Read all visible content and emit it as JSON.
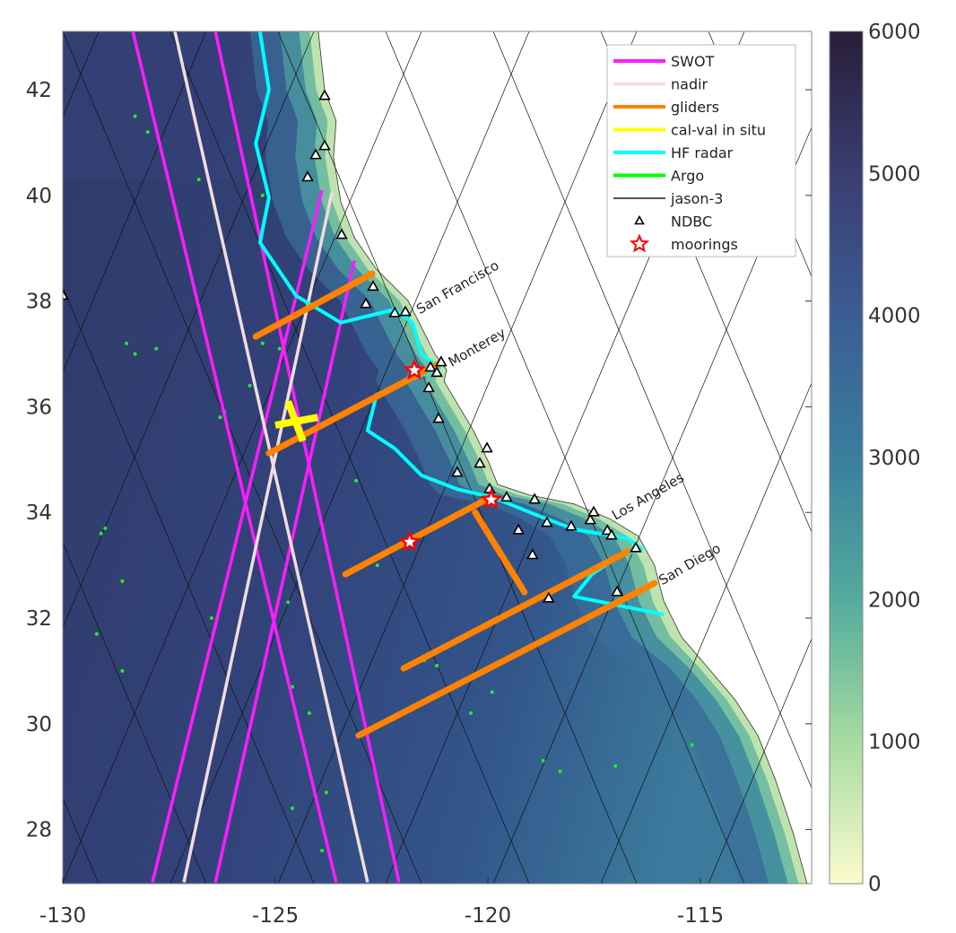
{
  "chart_data": {
    "type": "map",
    "xlim": [
      -130,
      -114.4
    ],
    "ylim": [
      27.0,
      43.1
    ],
    "x_ticks": [
      -130,
      -125,
      -120,
      -115
    ],
    "y_ticks": [
      28,
      30,
      32,
      34,
      36,
      38,
      40,
      42
    ],
    "x_tick_labels": [
      "-130",
      "-125",
      "-120",
      "-115"
    ],
    "y_tick_labels": [
      "28",
      "30",
      "32",
      "34",
      "36",
      "38",
      "40",
      "42"
    ],
    "colorbar": {
      "range": [
        0,
        6000
      ],
      "ticks": [
        "0",
        "1000",
        "2000",
        "3000",
        "4000",
        "5000",
        "6000"
      ],
      "colors": [
        "#fbfbcd",
        "#a6dba0",
        "#53ab9d",
        "#3a7e9e",
        "#3b5c93",
        "#3a3d72",
        "#281e38"
      ]
    },
    "legend": {
      "placement": "top-right",
      "entries": [
        {
          "label": "SWOT",
          "color": "#ff1cff",
          "kind": "line"
        },
        {
          "label": "nadir",
          "color": "#f8dede",
          "kind": "line"
        },
        {
          "label": "gliders",
          "color": "#ff8200",
          "kind": "line"
        },
        {
          "label": "cal-val in situ",
          "color": "#ffff00",
          "kind": "line"
        },
        {
          "label": "HF radar",
          "color": "#00ffff",
          "kind": "line"
        },
        {
          "label": "Argo",
          "color": "#00ff00",
          "kind": "line"
        },
        {
          "label": "jason-3",
          "color": "#555555",
          "kind": "thinline"
        },
        {
          "label": "NDBC",
          "color": "#000000",
          "kind": "triangle"
        },
        {
          "label": "moorings",
          "color": "#ff0000",
          "kind": "star"
        }
      ]
    },
    "cities": [
      {
        "label": "San Francisco",
        "lon": -121.6,
        "lat": 37.75
      },
      {
        "label": "Monterey",
        "lon": -120.85,
        "lat": 36.75
      },
      {
        "label": "Los Angeles",
        "lon": -117.0,
        "lat": 33.85
      },
      {
        "label": "San Diego",
        "lon": -115.9,
        "lat": 32.62
      }
    ],
    "coastline": [
      [
        -123.99,
        43.1
      ],
      [
        -123.84,
        42.0
      ],
      [
        -123.57,
        41.41
      ],
      [
        -123.63,
        40.73
      ],
      [
        -123.46,
        39.88
      ],
      [
        -123.14,
        39.2
      ],
      [
        -122.62,
        38.6
      ],
      [
        -121.88,
        38.01
      ],
      [
        -121.56,
        37.5
      ],
      [
        -121.24,
        36.99
      ],
      [
        -120.97,
        36.7
      ],
      [
        -121.03,
        36.48
      ],
      [
        -120.72,
        36.06
      ],
      [
        -120.34,
        35.55
      ],
      [
        -119.98,
        34.95
      ],
      [
        -119.77,
        34.53
      ],
      [
        -119.03,
        34.33
      ],
      [
        -117.97,
        34.16
      ],
      [
        -117.13,
        33.88
      ],
      [
        -116.46,
        33.55
      ],
      [
        -116.08,
        33.0
      ],
      [
        -115.86,
        32.32
      ],
      [
        -115.44,
        31.64
      ],
      [
        -114.81,
        31.05
      ],
      [
        -114.18,
        30.45
      ],
      [
        -113.65,
        29.78
      ],
      [
        -113.23,
        28.93
      ],
      [
        -112.81,
        27.91
      ],
      [
        -112.49,
        26.97
      ]
    ],
    "swot": [
      [
        [
          -128.35,
          43.1
        ],
        [
          -123.57,
          27.0
        ]
      ],
      [
        [
          -126.41,
          43.1
        ],
        [
          -122.09,
          27.0
        ]
      ],
      [
        [
          -127.89,
          27.0
        ],
        [
          -123.9,
          40.1
        ]
      ],
      [
        [
          -126.41,
          27.0
        ],
        [
          -123.14,
          38.77
        ]
      ]
    ],
    "nadir": [
      [
        [
          -127.36,
          43.1
        ],
        [
          -122.83,
          27.0
        ]
      ],
      [
        [
          -127.15,
          27.0
        ],
        [
          -123.67,
          40.05
        ]
      ]
    ],
    "gliders": [
      [
        [
          -123.35,
          32.83
        ],
        [
          -119.98,
          34.27
        ]
      ],
      [
        [
          -121.98,
          31.05
        ],
        [
          -116.71,
          33.26
        ]
      ],
      [
        [
          -123.04,
          29.78
        ],
        [
          -116.08,
          32.66
        ]
      ],
      [
        [
          -125.15,
          35.12
        ],
        [
          -121.14,
          36.82
        ]
      ],
      [
        [
          -125.46,
          37.33
        ],
        [
          -122.72,
          38.52
        ]
      ],
      [
        [
          -120.3,
          34.0
        ],
        [
          -119.14,
          32.49
        ]
      ]
    ],
    "calval": [
      [
        [
          -124.7,
          36.1
        ],
        [
          -124.35,
          35.35
        ]
      ],
      [
        [
          -125.0,
          35.65
        ],
        [
          -124.0,
          35.8
        ]
      ]
    ],
    "hf_radar": [
      [
        -125.36,
        43.1
      ],
      [
        -125.15,
        42.0
      ],
      [
        -125.46,
        40.98
      ],
      [
        -125.15,
        39.96
      ],
      [
        -125.36,
        39.11
      ],
      [
        -124.51,
        38.1
      ],
      [
        -123.46,
        37.59
      ],
      [
        -122.19,
        37.84
      ],
      [
        -121.77,
        37.59
      ],
      [
        -121.56,
        36.99
      ],
      [
        -121.14,
        36.74
      ],
      [
        -122.62,
        36.23
      ],
      [
        -122.83,
        35.55
      ],
      [
        -122.19,
        35.21
      ],
      [
        -121.56,
        34.7
      ],
      [
        -120.72,
        34.44
      ],
      [
        -119.87,
        34.28
      ],
      [
        -118.82,
        33.94
      ],
      [
        -117.97,
        33.68
      ],
      [
        -116.71,
        33.51
      ],
      [
        -116.39,
        33.31
      ],
      [
        -116.92,
        33.17
      ],
      [
        -117.55,
        32.83
      ],
      [
        -117.97,
        32.41
      ],
      [
        -116.92,
        32.24
      ],
      [
        -115.86,
        32.07
      ]
    ],
    "ndbc": [
      [
        -123.84,
        41.88
      ],
      [
        -123.84,
        40.93
      ],
      [
        -124.05,
        40.76
      ],
      [
        -124.24,
        40.34
      ],
      [
        -123.44,
        39.25
      ],
      [
        -122.7,
        38.27
      ],
      [
        -122.87,
        37.94
      ],
      [
        -122.19,
        37.77
      ],
      [
        -121.94,
        37.79
      ],
      [
        -121.35,
        36.74
      ],
      [
        -121.1,
        36.84
      ],
      [
        -121.2,
        36.64
      ],
      [
        -121.39,
        36.35
      ],
      [
        -121.16,
        35.77
      ],
      [
        -120.02,
        35.21
      ],
      [
        -120.19,
        34.92
      ],
      [
        -120.72,
        34.75
      ],
      [
        -119.96,
        34.44
      ],
      [
        -119.56,
        34.28
      ],
      [
        -118.9,
        34.24
      ],
      [
        -119.28,
        33.66
      ],
      [
        -118.61,
        33.8
      ],
      [
        -118.04,
        33.73
      ],
      [
        -117.59,
        33.85
      ],
      [
        -117.51,
        34.0
      ],
      [
        -117.19,
        33.65
      ],
      [
        -117.09,
        33.56
      ],
      [
        -116.52,
        33.32
      ],
      [
        -118.95,
        33.19
      ],
      [
        -118.57,
        32.37
      ],
      [
        -116.96,
        32.49
      ],
      [
        -130.0,
        38.1
      ]
    ],
    "moorings": [
      [
        -121.73,
        36.69
      ],
      [
        -119.92,
        34.24
      ],
      [
        -121.84,
        33.44
      ]
    ],
    "argo": [
      [
        -128.3,
        41.5
      ],
      [
        -128.0,
        41.2
      ],
      [
        -126.8,
        40.3
      ],
      [
        -125.3,
        40.0
      ],
      [
        -128.5,
        37.2
      ],
      [
        -128.3,
        37.0
      ],
      [
        -127.8,
        37.1
      ],
      [
        -125.6,
        36.4
      ],
      [
        -126.2,
        35.9
      ],
      [
        -126.3,
        35.8
      ],
      [
        -129.1,
        33.6
      ],
      [
        -129.0,
        33.7
      ],
      [
        -128.6,
        32.7
      ],
      [
        -129.2,
        31.7
      ],
      [
        -128.6,
        31.0
      ],
      [
        -126.5,
        32.0
      ],
      [
        -124.7,
        32.3
      ],
      [
        -124.4,
        32.6
      ],
      [
        -124.6,
        30.7
      ],
      [
        -124.2,
        30.2
      ],
      [
        -123.8,
        28.7
      ],
      [
        -124.6,
        28.4
      ],
      [
        -123.9,
        27.6
      ],
      [
        -121.5,
        31.2
      ],
      [
        -121.2,
        31.1
      ],
      [
        -120.4,
        30.2
      ],
      [
        -119.9,
        30.6
      ],
      [
        -118.7,
        29.3
      ],
      [
        -118.3,
        29.1
      ],
      [
        -117.0,
        29.2
      ],
      [
        -115.2,
        29.6
      ],
      [
        -122.6,
        33.0
      ],
      [
        -123.1,
        34.6
      ],
      [
        -124.9,
        37.1
      ],
      [
        -125.3,
        37.2
      ]
    ]
  }
}
